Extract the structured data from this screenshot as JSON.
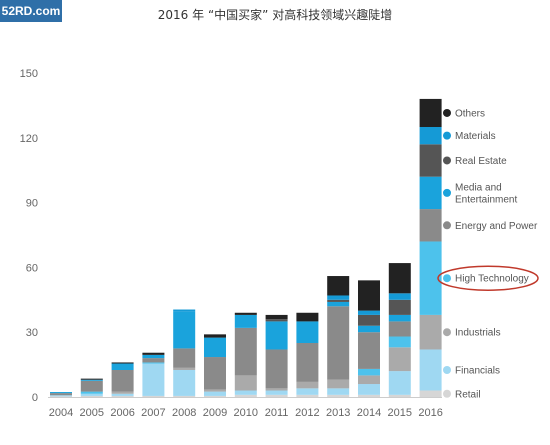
{
  "watermark": "52RD.com",
  "chart_data": {
    "type": "bar",
    "stacked": true,
    "title": "2016 年 “中国买家” 对高科技领域兴趣陡增",
    "xlabel": "",
    "ylabel": "",
    "ylim": [
      0,
      150
    ],
    "yticks": [
      0,
      30,
      60,
      90,
      120,
      150
    ],
    "grid": false,
    "legend_position": "right",
    "categories": [
      "2004",
      "2005",
      "2006",
      "2007",
      "2008",
      "2009",
      "2010",
      "2011",
      "2012",
      "2013",
      "2014",
      "2015",
      "2016"
    ],
    "series": [
      {
        "name": "Retail",
        "color": "#d6d6d6",
        "values": [
          0.3,
          0.5,
          0.5,
          0.5,
          0.5,
          0.5,
          1,
          1,
          1,
          1,
          1,
          1,
          3
        ]
      },
      {
        "name": "Financials",
        "color": "#9fd8f2",
        "values": [
          0.5,
          1,
          1,
          15,
          12,
          2,
          2,
          2,
          3,
          3,
          5,
          11,
          19
        ]
      },
      {
        "name": "Industrials",
        "color": "#aaaaaa",
        "values": [
          0,
          0,
          1,
          0,
          1,
          1,
          7,
          1,
          3,
          4,
          4,
          11,
          16
        ]
      },
      {
        "name": "High Technology",
        "color": "#4dc2ec",
        "values": [
          0,
          1,
          0,
          0.5,
          0,
          0,
          0,
          0,
          0,
          0,
          3,
          5,
          34
        ]
      },
      {
        "name": "Energy and Power",
        "color": "#8a8a8a",
        "values": [
          1,
          5,
          10,
          2,
          9,
          15,
          22,
          18,
          18,
          34,
          17,
          7,
          15
        ]
      },
      {
        "name": "Media and Entertainment",
        "color": "#1aa3dc",
        "values": [
          0.5,
          0.5,
          3,
          1.5,
          17,
          9,
          6,
          13,
          10,
          2,
          3,
          3,
          15
        ]
      },
      {
        "name": "Real Estate",
        "color": "#555555",
        "values": [
          0,
          0,
          0,
          0,
          0,
          0,
          0,
          1,
          0,
          1,
          5,
          7,
          15
        ]
      },
      {
        "name": "Materials",
        "color": "#159ad6",
        "values": [
          0,
          0,
          0,
          0,
          1,
          0,
          0,
          0,
          0,
          2,
          2,
          3,
          8
        ]
      },
      {
        "name": "Others",
        "color": "#222222",
        "values": [
          0,
          0.5,
          0.5,
          1,
          0,
          1.5,
          1,
          2,
          4,
          9,
          14,
          14,
          13
        ]
      }
    ],
    "legend_order": [
      "Others",
      "Materials",
      "Real Estate",
      "Media and Entertainment",
      "Energy and Power",
      "High Technology",
      "Industrials",
      "Financials",
      "Retail"
    ],
    "highlighted_series": "High Technology",
    "highlight_color": "#c0392b"
  }
}
